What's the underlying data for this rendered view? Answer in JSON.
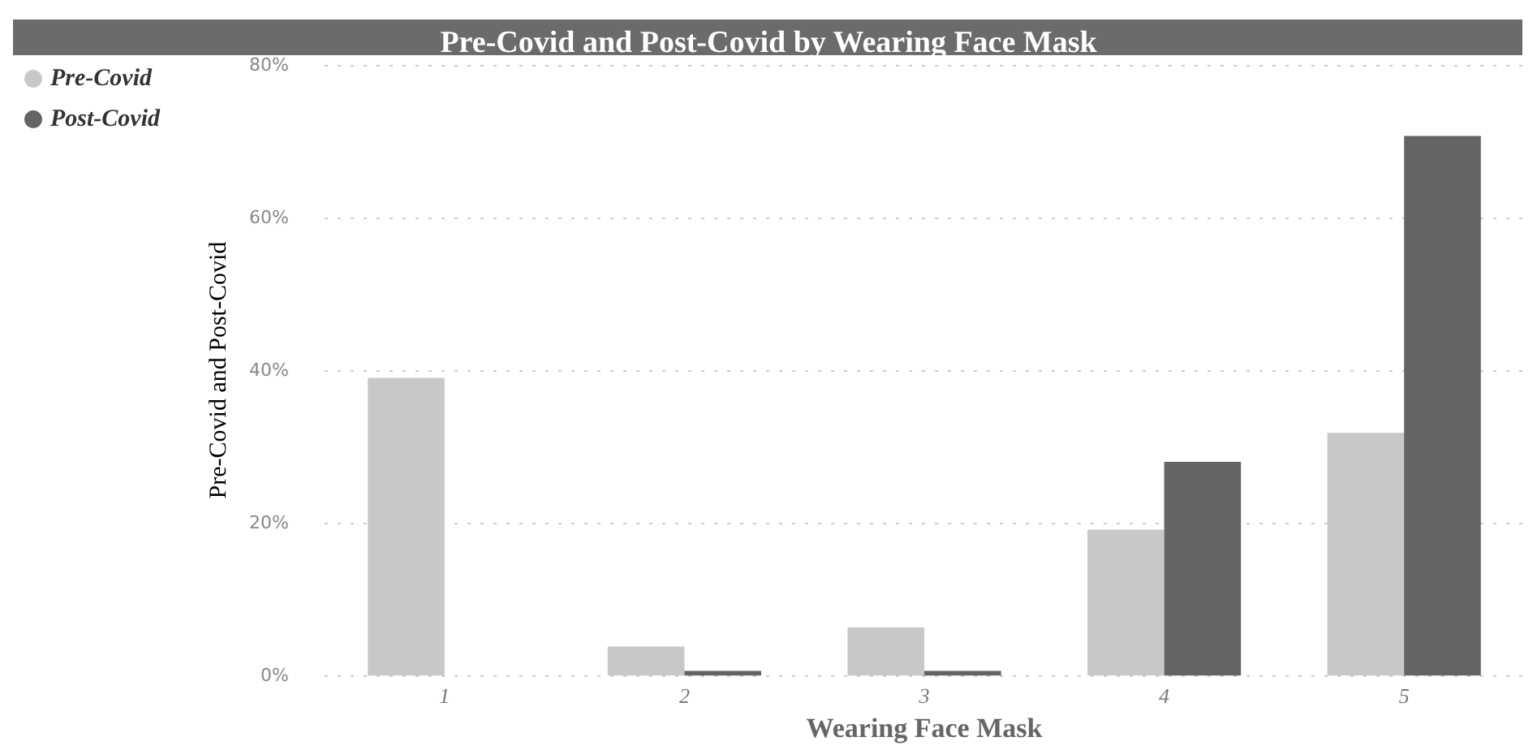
{
  "chart_data": {
    "type": "bar",
    "title": "Pre-Covid and Post-Covid by Wearing Face Mask",
    "xlabel": "Wearing Face Mask",
    "ylabel": "Pre-Covid and Post-Covid",
    "categories": [
      "1",
      "2",
      "3",
      "4",
      "5"
    ],
    "series": [
      {
        "name": "Pre-Covid",
        "color": "#c8c8c8",
        "values": [
          39,
          3.8,
          6.3,
          19.1,
          31.8
        ]
      },
      {
        "name": "Post-Covid",
        "color": "#646464",
        "values": [
          0,
          0.6,
          0.6,
          28,
          70.7
        ]
      }
    ],
    "ylim": [
      0,
      80
    ],
    "yticks": [
      {
        "value": 0,
        "label": "0%"
      },
      {
        "value": 20,
        "label": "20%"
      },
      {
        "value": 40,
        "label": "40%"
      },
      {
        "value": 60,
        "label": "60%"
      },
      {
        "value": 80,
        "label": "80%"
      }
    ],
    "grid": "y",
    "legend": "top left"
  }
}
